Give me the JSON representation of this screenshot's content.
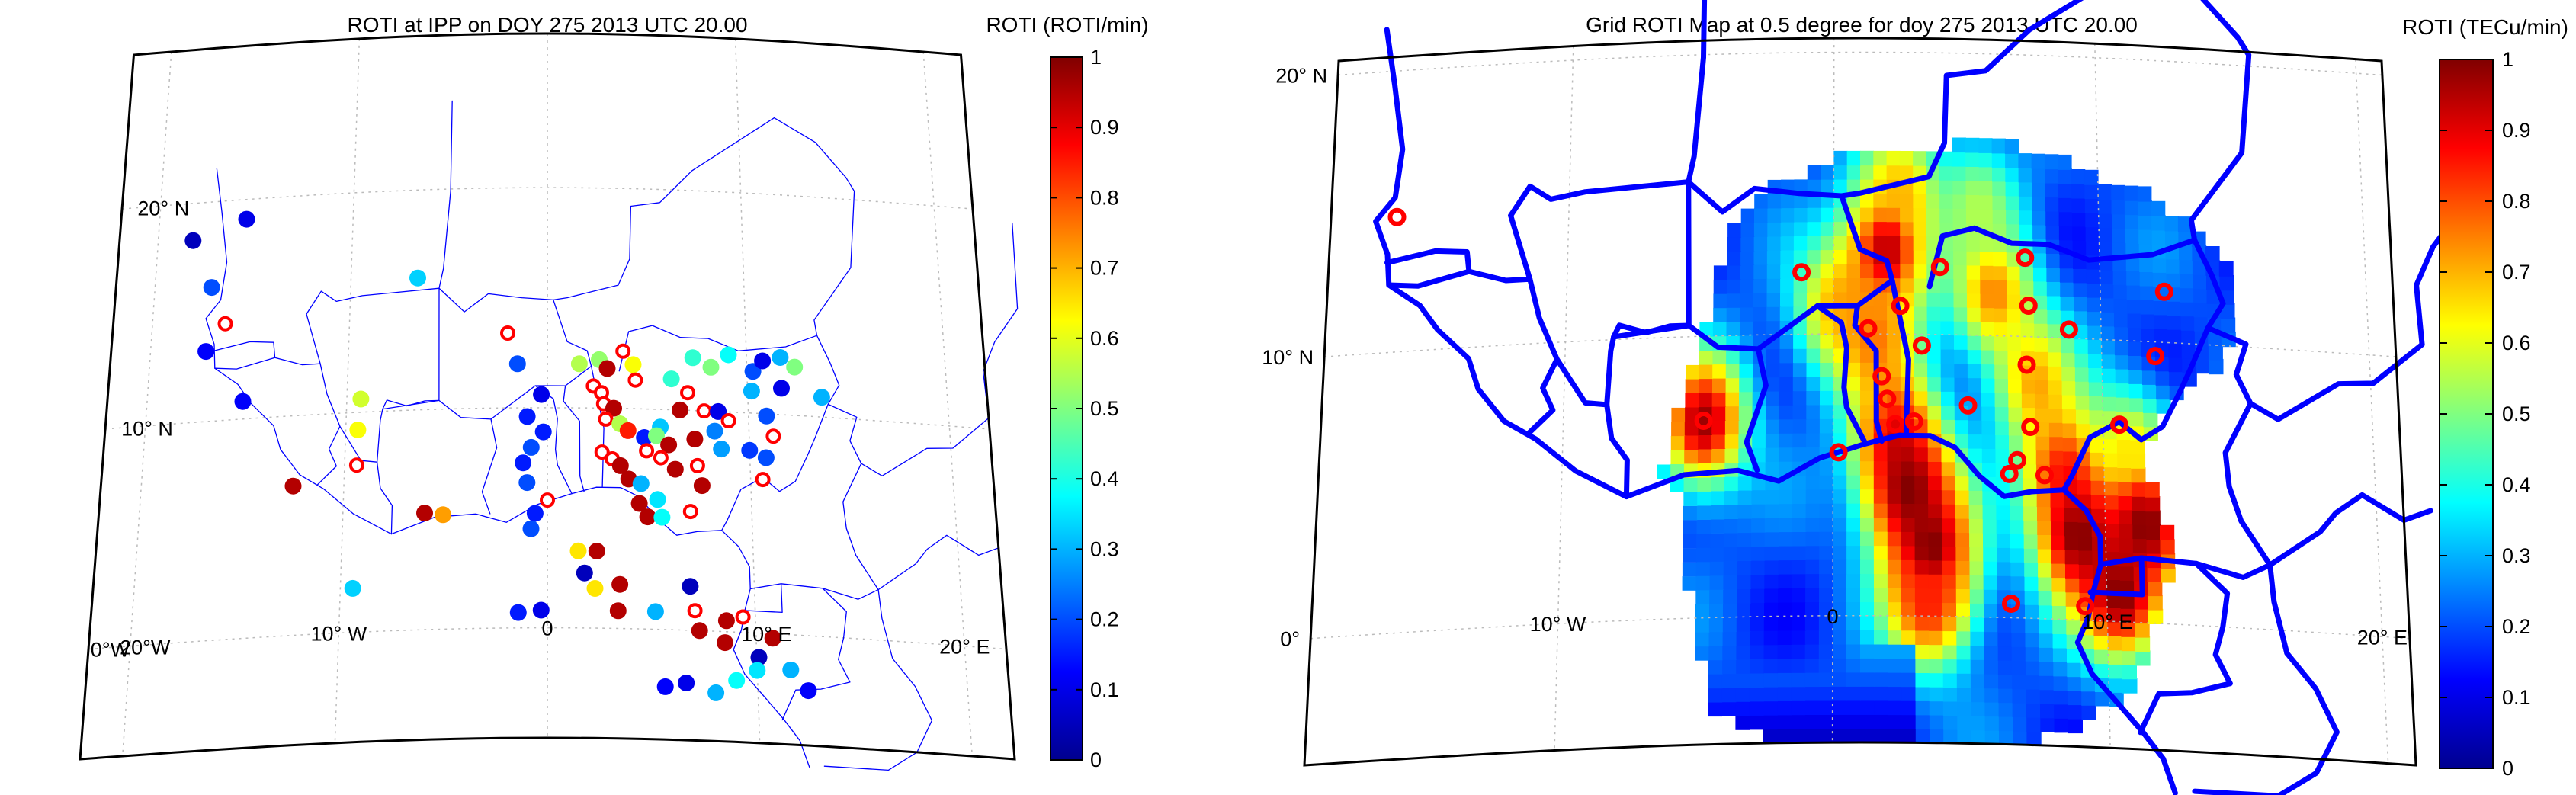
{
  "colors": {
    "scale_stops": [
      "#00008f",
      "#0000ff",
      "#0080ff",
      "#00ffff",
      "#80ff80",
      "#ffff00",
      "#ff8000",
      "#ff0000",
      "#800000"
    ],
    "border": "#0000ff",
    "frame": "#000000",
    "open_marker": "#ff0000",
    "grid": "#bbbbbb"
  },
  "chart_data": [
    {
      "type": "scatter",
      "title": "ROTI at IPP on DOY 275 2013 UTC 20.00",
      "colorbar_label": "ROTI (ROTI/min)",
      "colorbar_range": [
        0,
        1
      ],
      "colorbar_ticks": [
        "0",
        "0.1",
        "0.2",
        "0.3",
        "0.4",
        "0.5",
        "0.6",
        "0.7",
        "0.8",
        "0.9",
        "1"
      ],
      "lon_tick_labels": [
        "0°W",
        "20°W",
        "10° W",
        "0",
        "10° E",
        "20° E"
      ],
      "lat_tick_labels": [
        "20° N",
        "10° N"
      ],
      "lon_range": [
        -22,
        22
      ],
      "lat_range": [
        -5,
        27
      ],
      "grid": true,
      "points": [
        {
          "lon": -18.2,
          "lat": 18.3,
          "roti": 0.05
        },
        {
          "lon": -15.5,
          "lat": 19.1,
          "roti": 0.1
        },
        {
          "lon": -17.1,
          "lat": 16.1,
          "roti": 0.2
        },
        {
          "lon": -17.2,
          "lat": 13.2,
          "roti": 0.12
        },
        {
          "lon": -15.2,
          "lat": 10.8,
          "roti": 0.12
        },
        {
          "lon": -16.3,
          "lat": 14.4,
          "roti": 0.9,
          "open": true
        },
        {
          "lon": -6.6,
          "lat": 16.0,
          "roti": 0.33
        },
        {
          "lon": -9.3,
          "lat": 10.6,
          "roti": 0.58
        },
        {
          "lon": -9.4,
          "lat": 9.2,
          "roti": 0.62
        },
        {
          "lon": -9.4,
          "lat": 7.6,
          "roti": 0.9,
          "open": true
        },
        {
          "lon": -12.5,
          "lat": 6.8,
          "roti": 0.95
        },
        {
          "lon": -6.0,
          "lat": 5.3,
          "roti": 0.95
        },
        {
          "lon": -5.1,
          "lat": 5.2,
          "roti": 0.72
        },
        {
          "lon": -9.4,
          "lat": 2.0,
          "roti": 0.33
        },
        {
          "lon": -2.0,
          "lat": 13.4,
          "roti": 0.9,
          "open": true
        },
        {
          "lon": -1.5,
          "lat": 12.0,
          "roti": 0.2
        },
        {
          "lon": -0.3,
          "lat": 10.6,
          "roti": 0.1
        },
        {
          "lon": -1.0,
          "lat": 9.6,
          "roti": 0.15
        },
        {
          "lon": -0.2,
          "lat": 8.9,
          "roti": 0.15
        },
        {
          "lon": -0.8,
          "lat": 8.2,
          "roti": 0.2
        },
        {
          "lon": -1.2,
          "lat": 7.5,
          "roti": 0.15
        },
        {
          "lon": -1.0,
          "lat": 6.6,
          "roti": 0.2
        },
        {
          "lon": 0.0,
          "lat": 5.8,
          "roti": 0.9,
          "open": true
        },
        {
          "lon": -0.6,
          "lat": 5.2,
          "roti": 0.15
        },
        {
          "lon": -0.8,
          "lat": 4.5,
          "roti": 0.2
        },
        {
          "lon": 1.5,
          "lat": 3.5,
          "roti": 0.65
        },
        {
          "lon": 2.4,
          "lat": 3.5,
          "roti": 0.95
        },
        {
          "lon": 1.8,
          "lat": 2.5,
          "roti": 0.05
        },
        {
          "lon": 2.3,
          "lat": 1.8,
          "roti": 0.65
        },
        {
          "lon": 3.5,
          "lat": 2.0,
          "roti": 0.95
        },
        {
          "lon": -0.3,
          "lat": 0.8,
          "roti": 0.1
        },
        {
          "lon": -1.4,
          "lat": 0.7,
          "roti": 0.15
        },
        {
          "lon": 3.4,
          "lat": 0.8,
          "roti": 0.95
        },
        {
          "lon": 5.2,
          "lat": 0.8,
          "roti": 0.3
        },
        {
          "lon": 1.6,
          "lat": 12.0,
          "roti": 0.55
        },
        {
          "lon": 2.6,
          "lat": 12.2,
          "roti": 0.52
        },
        {
          "lon": 3.0,
          "lat": 11.8,
          "roti": 0.95
        },
        {
          "lon": 3.8,
          "lat": 12.6,
          "roti": 0.9,
          "open": true
        },
        {
          "lon": 4.3,
          "lat": 12.0,
          "roti": 0.62
        },
        {
          "lon": 4.4,
          "lat": 11.3,
          "roti": 0.9,
          "open": true
        },
        {
          "lon": 2.3,
          "lat": 11.0,
          "roti": 0.9,
          "open": true
        },
        {
          "lon": 2.7,
          "lat": 10.7,
          "roti": 0.9,
          "open": true
        },
        {
          "lon": 2.8,
          "lat": 10.2,
          "roti": 0.9,
          "open": true
        },
        {
          "lon": 3.3,
          "lat": 10.0,
          "roti": 0.95
        },
        {
          "lon": 2.9,
          "lat": 9.5,
          "roti": 0.9,
          "open": true
        },
        {
          "lon": 3.6,
          "lat": 9.3,
          "roti": 0.55
        },
        {
          "lon": 4.0,
          "lat": 9.0,
          "roti": 0.85
        },
        {
          "lon": 4.8,
          "lat": 8.7,
          "roti": 0.15
        },
        {
          "lon": 5.6,
          "lat": 9.2,
          "roti": 0.32
        },
        {
          "lon": 5.4,
          "lat": 8.8,
          "roti": 0.5
        },
        {
          "lon": 6.0,
          "lat": 8.4,
          "roti": 0.95
        },
        {
          "lon": 4.9,
          "lat": 8.1,
          "roti": 0.9,
          "open": true
        },
        {
          "lon": 2.7,
          "lat": 8.0,
          "roti": 0.9,
          "open": true
        },
        {
          "lon": 3.2,
          "lat": 7.7,
          "roti": 0.9,
          "open": true
        },
        {
          "lon": 3.6,
          "lat": 7.4,
          "roti": 0.95
        },
        {
          "lon": 5.6,
          "lat": 7.8,
          "roti": 0.9,
          "open": true
        },
        {
          "lon": 4.0,
          "lat": 6.8,
          "roti": 0.95
        },
        {
          "lon": 4.6,
          "lat": 6.6,
          "roti": 0.3
        },
        {
          "lon": 5.4,
          "lat": 5.9,
          "roti": 0.35
        },
        {
          "lon": 4.5,
          "lat": 5.7,
          "roti": 0.95
        },
        {
          "lon": 4.9,
          "lat": 5.1,
          "roti": 0.95
        },
        {
          "lon": 5.6,
          "lat": 5.1,
          "roti": 0.38
        },
        {
          "lon": 6.3,
          "lat": 7.3,
          "roti": 0.95
        },
        {
          "lon": 7.3,
          "lat": 8.7,
          "roti": 0.95
        },
        {
          "lon": 6.2,
          "lat": 11.4,
          "roti": 0.42
        },
        {
          "lon": 7.0,
          "lat": 10.8,
          "roti": 0.9,
          "open": true
        },
        {
          "lon": 6.6,
          "lat": 10.0,
          "roti": 0.95
        },
        {
          "lon": 7.8,
          "lat": 10.0,
          "roti": 0.9,
          "open": true
        },
        {
          "lon": 7.4,
          "lat": 7.5,
          "roti": 0.9,
          "open": true
        },
        {
          "lon": 7.6,
          "lat": 6.6,
          "roti": 0.95
        },
        {
          "lon": 7.0,
          "lat": 5.4,
          "roti": 0.9,
          "open": true
        },
        {
          "lon": 8.5,
          "lat": 10.0,
          "roti": 0.1
        },
        {
          "lon": 9.0,
          "lat": 9.6,
          "roti": 0.9,
          "open": true
        },
        {
          "lon": 8.3,
          "lat": 9.1,
          "roti": 0.25
        },
        {
          "lon": 8.6,
          "lat": 8.3,
          "roti": 0.28
        },
        {
          "lon": 10.0,
          "lat": 8.3,
          "roti": 0.18
        },
        {
          "lon": 7.3,
          "lat": 12.4,
          "roti": 0.42
        },
        {
          "lon": 8.2,
          "lat": 12.0,
          "roti": 0.5
        },
        {
          "lon": 9.1,
          "lat": 12.6,
          "roti": 0.38
        },
        {
          "lon": 10.3,
          "lat": 11.9,
          "roti": 0.2
        },
        {
          "lon": 10.8,
          "lat": 12.4,
          "roti": 0.1
        },
        {
          "lon": 11.7,
          "lat": 12.6,
          "roti": 0.3
        },
        {
          "lon": 12.4,
          "lat": 12.2,
          "roti": 0.5
        },
        {
          "lon": 11.7,
          "lat": 11.2,
          "roti": 0.1
        },
        {
          "lon": 10.2,
          "lat": 11.0,
          "roti": 0.3
        },
        {
          "lon": 13.7,
          "lat": 10.9,
          "roti": 0.3
        },
        {
          "lon": 10.9,
          "lat": 9.9,
          "roti": 0.2
        },
        {
          "lon": 11.2,
          "lat": 9.0,
          "roti": 0.9,
          "open": true
        },
        {
          "lon": 10.8,
          "lat": 8.0,
          "roti": 0.2
        },
        {
          "lon": 10.6,
          "lat": 7.0,
          "roti": 0.9,
          "open": true
        },
        {
          "lon": 6.9,
          "lat": 2.0,
          "roti": 0.05
        },
        {
          "lon": 7.1,
          "lat": 0.9,
          "roti": 0.9,
          "open": true
        },
        {
          "lon": 7.3,
          "lat": 0.0,
          "roti": 0.95
        },
        {
          "lon": 8.6,
          "lat": 0.5,
          "roti": 0.95
        },
        {
          "lon": 9.4,
          "lat": 0.7,
          "roti": 0.9,
          "open": true
        },
        {
          "lon": 10.1,
          "lat": -1.1,
          "roti": 0.05
        },
        {
          "lon": 10.8,
          "lat": -0.2,
          "roti": 0.95
        },
        {
          "lon": 11.6,
          "lat": -1.6,
          "roti": 0.3
        },
        {
          "lon": 12.4,
          "lat": -2.5,
          "roti": 0.12
        },
        {
          "lon": 8.5,
          "lat": -0.5,
          "roti": 0.95
        },
        {
          "lon": 8.0,
          "lat": -2.8,
          "roti": 0.3
        },
        {
          "lon": 9.0,
          "lat": -2.2,
          "roti": 0.38
        },
        {
          "lon": 10.0,
          "lat": -1.7,
          "roti": 0.35
        },
        {
          "lon": 6.6,
          "lat": -2.4,
          "roti": 0.1
        },
        {
          "lon": 5.6,
          "lat": -2.6,
          "roti": 0.12
        }
      ]
    },
    {
      "type": "heatmap",
      "title": "Grid ROTI Map at 0.5 degree for doy 275 2013 UTC 20.00",
      "colorbar_label": "ROTI (TECu/min)",
      "colorbar_range": [
        0,
        1
      ],
      "colorbar_ticks": [
        "0",
        "0.1",
        "0.2",
        "0.3",
        "0.4",
        "0.5",
        "0.6",
        "0.7",
        "0.8",
        "0.9",
        "1"
      ],
      "lon_tick_labels": [
        "10° W",
        "0",
        "10° E",
        "20° E"
      ],
      "lat_tick_labels": [
        "20° N",
        "10° N",
        "0°"
      ],
      "lon_range": [
        -19,
        21
      ],
      "lat_range": [
        -4.5,
        20.5
      ],
      "grid": true,
      "grid_resolution_deg": 0.5,
      "hotspots": [
        {
          "lon": -4.8,
          "lat": 7.0,
          "roti": 0.98
        },
        {
          "lon": 0.0,
          "lat": 11.0,
          "roti": 0.65
        },
        {
          "lon": 2.0,
          "lat": 13.0,
          "roti": 0.95
        },
        {
          "lon": 1.5,
          "lat": 10.0,
          "roti": 0.75
        },
        {
          "lon": 2.3,
          "lat": 6.5,
          "roti": 0.85
        },
        {
          "lon": 2.8,
          "lat": 4.5,
          "roti": 1.0
        },
        {
          "lon": 3.6,
          "lat": 2.5,
          "roti": 1.0
        },
        {
          "lon": 3.5,
          "lat": 0.5,
          "roti": 0.85
        },
        {
          "lon": 6.0,
          "lat": 11.5,
          "roti": 0.75
        },
        {
          "lon": 7.5,
          "lat": 8.5,
          "roti": 0.7
        },
        {
          "lon": 8.5,
          "lat": 5.5,
          "roti": 0.8
        },
        {
          "lon": 9.0,
          "lat": 3.0,
          "roti": 1.0
        },
        {
          "lon": 10.5,
          "lat": 1.0,
          "roti": 1.0
        },
        {
          "lon": 11.5,
          "lat": 3.5,
          "roti": 1.0
        },
        {
          "lon": 11.0,
          "lat": 6.0,
          "roti": 0.65
        },
        {
          "lon": 2.5,
          "lat": 15.0,
          "roti": 0.7
        },
        {
          "lon": 5.5,
          "lat": 14.5,
          "roti": 0.55
        }
      ],
      "stations": [
        {
          "lon": -16.5,
          "lat": 14.8
        },
        {
          "lon": -4.8,
          "lat": 7.0
        },
        {
          "lon": -1.2,
          "lat": 12.2
        },
        {
          "lon": 0.2,
          "lat": 5.8
        },
        {
          "lon": 1.3,
          "lat": 10.2
        },
        {
          "lon": 1.8,
          "lat": 8.5
        },
        {
          "lon": 2.0,
          "lat": 7.7
        },
        {
          "lon": 2.3,
          "lat": 6.8
        },
        {
          "lon": 3.0,
          "lat": 6.9
        },
        {
          "lon": 2.5,
          "lat": 11.0
        },
        {
          "lon": 3.3,
          "lat": 9.6
        },
        {
          "lon": 4.0,
          "lat": 12.4
        },
        {
          "lon": 5.0,
          "lat": 7.5
        },
        {
          "lon": 7.2,
          "lat": 12.8
        },
        {
          "lon": 7.3,
          "lat": 11.1
        },
        {
          "lon": 7.2,
          "lat": 9.0
        },
        {
          "lon": 8.8,
          "lat": 10.3
        },
        {
          "lon": 7.3,
          "lat": 6.8
        },
        {
          "lon": 6.8,
          "lat": 5.6
        },
        {
          "lon": 6.5,
          "lat": 5.1
        },
        {
          "lon": 7.8,
          "lat": 5.1
        },
        {
          "lon": 10.6,
          "lat": 7.0
        },
        {
          "lon": 12.0,
          "lat": 9.5
        },
        {
          "lon": 12.4,
          "lat": 11.8
        },
        {
          "lon": 6.5,
          "lat": 0.5
        },
        {
          "lon": 9.2,
          "lat": 0.5
        }
      ]
    }
  ]
}
